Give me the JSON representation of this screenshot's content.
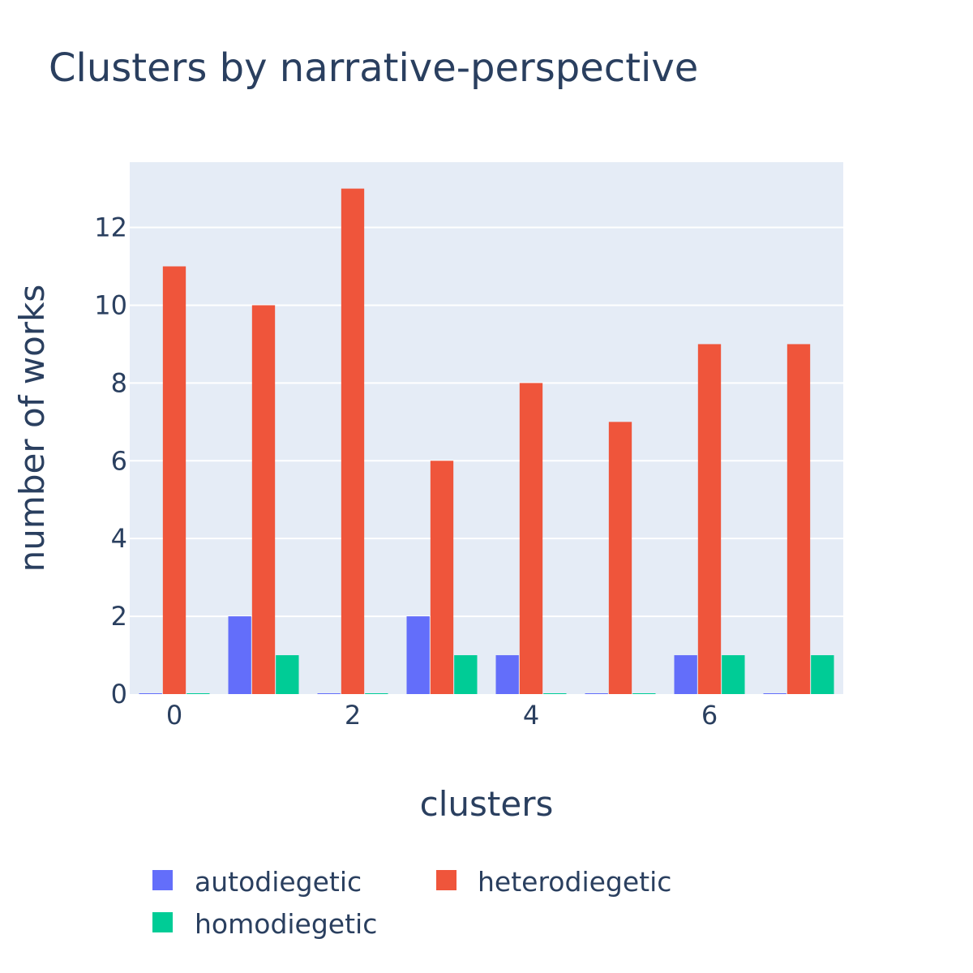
{
  "chart_data": {
    "type": "bar",
    "title": "Clusters by narrative-perspective",
    "xlabel": "clusters",
    "ylabel": "number of works",
    "x": [
      0,
      1,
      2,
      3,
      4,
      5,
      6,
      7
    ],
    "x_ticks": [
      "0",
      "2",
      "4",
      "6"
    ],
    "y_ticks": [
      "0",
      "2",
      "4",
      "6",
      "8",
      "10",
      "12"
    ],
    "ylim": [
      0,
      13.68
    ],
    "xlim": [
      -0.5,
      7.5
    ],
    "grid": true,
    "legend_position": "bottom",
    "series": [
      {
        "name": "autodiegetic",
        "color": "#636efa",
        "values": [
          0,
          2,
          0,
          2,
          1,
          0,
          1,
          0
        ]
      },
      {
        "name": "heterodiegetic",
        "color": "#ef553b",
        "values": [
          11,
          10,
          13,
          6,
          8,
          7,
          9,
          9
        ]
      },
      {
        "name": "homodiegetic",
        "color": "#00cc96",
        "values": [
          0,
          1,
          0,
          1,
          0,
          0,
          1,
          1
        ]
      }
    ]
  },
  "colors": {
    "plot_background": "#e5ecf6",
    "grid": "#ffffff",
    "text": "#2a3f5f"
  }
}
